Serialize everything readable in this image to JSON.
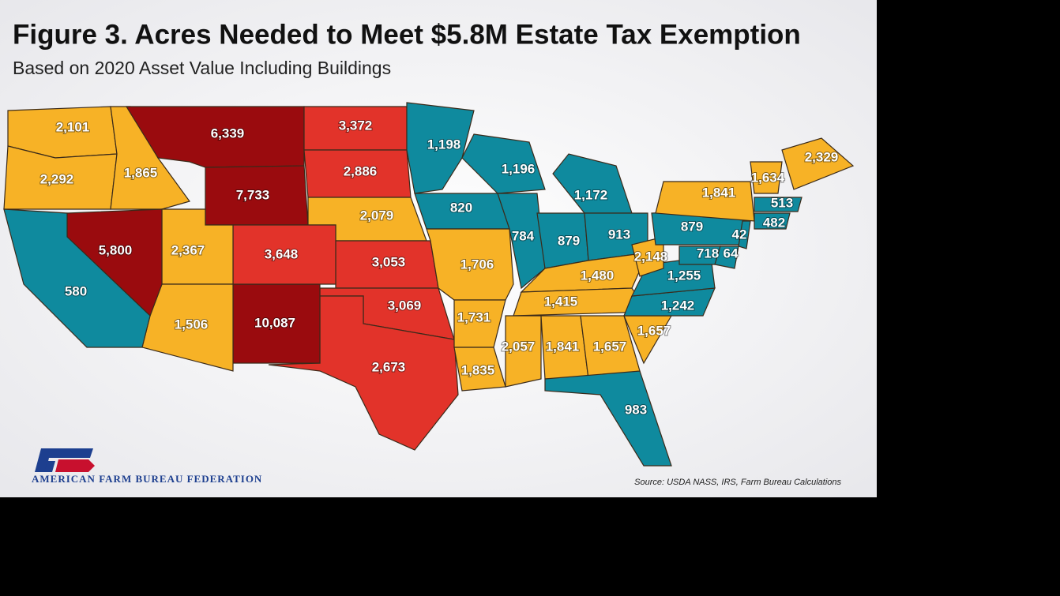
{
  "header": {
    "title": "Figure 3. Acres Needed to Meet $5.8M Estate Tax Exemption",
    "subtitle": "Based on 2020 Asset Value Including Buildings"
  },
  "palette": {
    "maroon": "#9a0b0e",
    "red": "#e2332a",
    "gold": "#f7b226",
    "teal": "#0f8a9e"
  },
  "regions": [
    {
      "label": "2,101",
      "color": "gold"
    },
    {
      "label": "2,292",
      "color": "gold"
    },
    {
      "label": "1,865",
      "color": "gold"
    },
    {
      "label": "6,339",
      "color": "maroon"
    },
    {
      "label": "7,733",
      "color": "maroon"
    },
    {
      "label": "3,372",
      "color": "red"
    },
    {
      "label": "2,886",
      "color": "red"
    },
    {
      "label": "2,079",
      "color": "gold"
    },
    {
      "label": "3,053",
      "color": "red"
    },
    {
      "label": "3,069",
      "color": "red"
    },
    {
      "label": "2,673",
      "color": "red"
    },
    {
      "label": "10,087",
      "color": "maroon"
    },
    {
      "label": "3,648",
      "color": "red"
    },
    {
      "label": "2,367",
      "color": "gold"
    },
    {
      "label": "1,506",
      "color": "gold"
    },
    {
      "label": "5,800",
      "color": "maroon"
    },
    {
      "label": "580",
      "color": "teal"
    },
    {
      "label": "1,198",
      "color": "teal"
    },
    {
      "label": "820",
      "color": "teal"
    },
    {
      "label": "1,706",
      "color": "gold"
    },
    {
      "label": "1,731",
      "color": "gold"
    },
    {
      "label": "1,835",
      "color": "gold"
    },
    {
      "label": "1,196",
      "color": "teal"
    },
    {
      "label": "784",
      "color": "teal"
    },
    {
      "label": "879",
      "color": "teal"
    },
    {
      "label": "1,172",
      "color": "teal"
    },
    {
      "label": "913",
      "color": "teal"
    },
    {
      "label": "1,480",
      "color": "gold"
    },
    {
      "label": "1,415",
      "color": "gold"
    },
    {
      "label": "2,057",
      "color": "gold"
    },
    {
      "label": "1,841",
      "color": "gold"
    },
    {
      "label": "1,657",
      "color": "gold"
    },
    {
      "label": "983",
      "color": "teal"
    },
    {
      "label": "1,657",
      "color": "gold"
    },
    {
      "label": "1,242",
      "color": "teal"
    },
    {
      "label": "1,255",
      "color": "teal"
    },
    {
      "label": "2,148",
      "color": "gold"
    },
    {
      "label": "879",
      "color": "teal"
    },
    {
      "label": "718",
      "color": "teal"
    },
    {
      "label": "64",
      "color": "teal"
    },
    {
      "label": "42",
      "color": "teal"
    },
    {
      "label": "1,841",
      "color": "gold"
    },
    {
      "label": "1,634",
      "color": "gold"
    },
    {
      "label": "2,329",
      "color": "gold"
    },
    {
      "label": "513",
      "color": "teal"
    },
    {
      "label": "482",
      "color": "teal"
    }
  ],
  "footer": {
    "organization": "AMERICAN FARM BUREAU FEDERATION",
    "source": "Source: USDA NASS, IRS, Farm Bureau Calculations"
  }
}
